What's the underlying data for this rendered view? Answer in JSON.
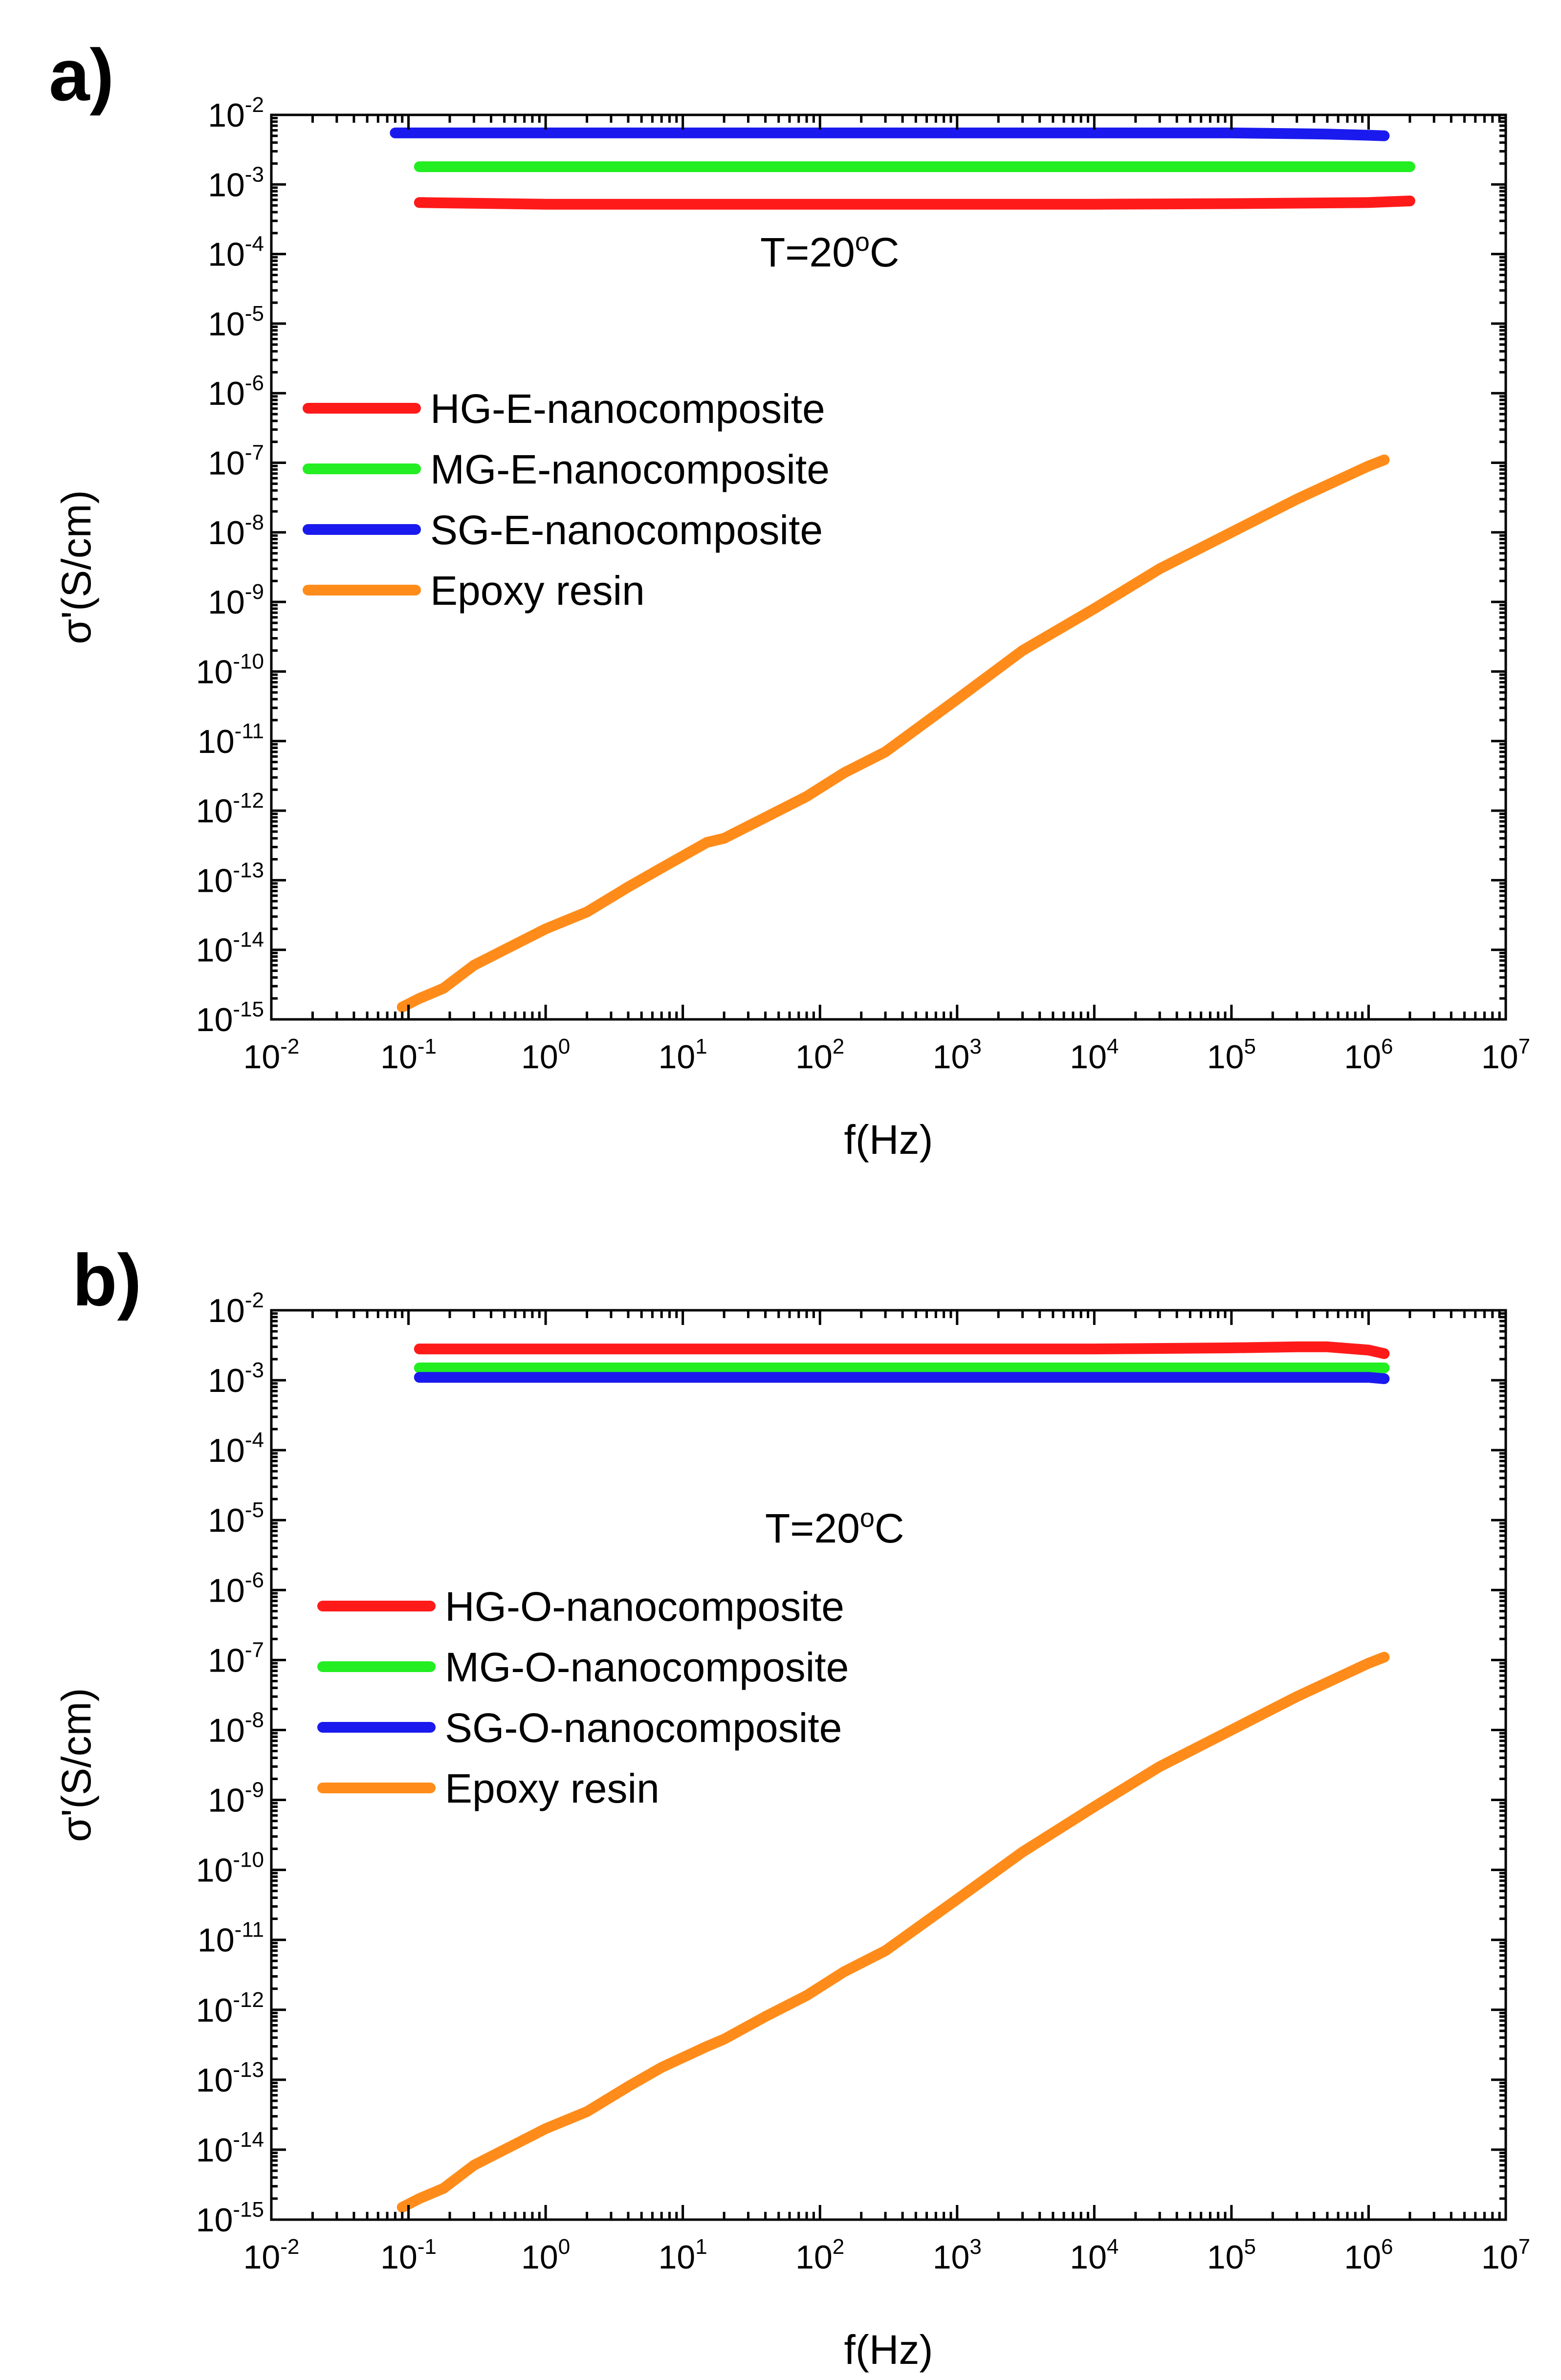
{
  "chart_data": [
    {
      "type": "line",
      "panel_label": "a)",
      "annotation": {
        "base": "T=20",
        "sup": "o",
        "rest": "C"
      },
      "xlabel": "f(Hz)",
      "ylabel": "σ'(S/cm)",
      "xscale": "log",
      "yscale": "log",
      "xlim": [
        0.01,
        10000000
      ],
      "ylim": [
        1e-15,
        0.01
      ],
      "x_ticks": [
        {
          "base": "10",
          "exp": "-2"
        },
        {
          "base": "10",
          "exp": "-1"
        },
        {
          "base": "10",
          "exp": "0"
        },
        {
          "base": "10",
          "exp": "1"
        },
        {
          "base": "10",
          "exp": "2"
        },
        {
          "base": "10",
          "exp": "3"
        },
        {
          "base": "10",
          "exp": "4"
        },
        {
          "base": "10",
          "exp": "5"
        },
        {
          "base": "10",
          "exp": "6"
        },
        {
          "base": "10",
          "exp": "7"
        }
      ],
      "y_ticks": [
        {
          "base": "10",
          "exp": "-2"
        },
        {
          "base": "10",
          "exp": "-3"
        },
        {
          "base": "10",
          "exp": "-4"
        },
        {
          "base": "10",
          "exp": "-5"
        },
        {
          "base": "10",
          "exp": "-6"
        },
        {
          "base": "10",
          "exp": "-7"
        },
        {
          "base": "10",
          "exp": "-8"
        },
        {
          "base": "10",
          "exp": "-9"
        },
        {
          "base": "10",
          "exp": "-10"
        },
        {
          "base": "10",
          "exp": "-11"
        },
        {
          "base": "10",
          "exp": "-12"
        },
        {
          "base": "10",
          "exp": "-13"
        },
        {
          "base": "10",
          "exp": "-14"
        },
        {
          "base": "10",
          "exp": "-15"
        }
      ],
      "legend_position": "center-left",
      "series": [
        {
          "name": "HG-E-nanocomposite",
          "color": "#ff1a1a",
          "x": [
            0.12,
            1,
            10,
            100,
            1000,
            10000,
            100000,
            1000000,
            2000000
          ],
          "y": [
            0.00055,
            0.00052,
            0.00052,
            0.00052,
            0.00052,
            0.00052,
            0.00053,
            0.00055,
            0.00058
          ]
        },
        {
          "name": "MG-E-nanocomposite",
          "color": "#22ee22",
          "x": [
            0.12,
            1,
            10,
            100,
            1000,
            10000,
            100000,
            1000000,
            2000000
          ],
          "y": [
            0.0018,
            0.0018,
            0.0018,
            0.0018,
            0.0018,
            0.0018,
            0.0018,
            0.0018,
            0.0018
          ]
        },
        {
          "name": "SG-E-nanocomposite",
          "color": "#1a1aee",
          "x": [
            0.08,
            1,
            10,
            100,
            1000,
            10000,
            100000,
            500000,
            1000000,
            1300000
          ],
          "y": [
            0.0055,
            0.0055,
            0.0055,
            0.0055,
            0.0055,
            0.0055,
            0.0055,
            0.0053,
            0.0051,
            0.005
          ]
        },
        {
          "name": "Epoxy resin",
          "color": "#ff8c1a",
          "x": [
            0.09,
            0.12,
            0.18,
            0.3,
            0.5,
            1,
            2,
            4,
            7,
            15,
            20,
            40,
            80,
            150,
            300,
            1000,
            3000,
            10000,
            30000,
            100000,
            300000,
            1000000,
            1300000
          ],
          "y": [
            1.5e-15,
            2e-15,
            2.8e-15,
            6e-15,
            1e-14,
            2e-14,
            3.5e-14,
            8e-14,
            1.5e-13,
            3.5e-13,
            4e-13,
            8e-13,
            1.6e-12,
            3.5e-12,
            7e-12,
            4e-11,
            2e-10,
            8e-10,
            3e-09,
            1e-08,
            3e-08,
            9e-08,
            1.1e-07
          ]
        }
      ]
    },
    {
      "type": "line",
      "panel_label": "b)",
      "annotation": {
        "base": "T=20",
        "sup": "o",
        "rest": "C"
      },
      "xlabel": "f(Hz)",
      "ylabel": "σ'(S/cm)",
      "xscale": "log",
      "yscale": "log",
      "xlim": [
        0.01,
        10000000
      ],
      "ylim": [
        1e-15,
        0.01
      ],
      "x_ticks": [
        {
          "base": "10",
          "exp": "-2"
        },
        {
          "base": "10",
          "exp": "-1"
        },
        {
          "base": "10",
          "exp": "0"
        },
        {
          "base": "10",
          "exp": "1"
        },
        {
          "base": "10",
          "exp": "2"
        },
        {
          "base": "10",
          "exp": "3"
        },
        {
          "base": "10",
          "exp": "4"
        },
        {
          "base": "10",
          "exp": "5"
        },
        {
          "base": "10",
          "exp": "6"
        },
        {
          "base": "10",
          "exp": "7"
        }
      ],
      "y_ticks": [
        {
          "base": "10",
          "exp": "-2"
        },
        {
          "base": "10",
          "exp": "-3"
        },
        {
          "base": "10",
          "exp": "-4"
        },
        {
          "base": "10",
          "exp": "-5"
        },
        {
          "base": "10",
          "exp": "-6"
        },
        {
          "base": "10",
          "exp": "-7"
        },
        {
          "base": "10",
          "exp": "-8"
        },
        {
          "base": "10",
          "exp": "-9"
        },
        {
          "base": "10",
          "exp": "-10"
        },
        {
          "base": "10",
          "exp": "-11"
        },
        {
          "base": "10",
          "exp": "-12"
        },
        {
          "base": "10",
          "exp": "-13"
        },
        {
          "base": "10",
          "exp": "-14"
        },
        {
          "base": "10",
          "exp": "-15"
        }
      ],
      "legend_position": "center-left",
      "series": [
        {
          "name": "HG-O-nanocomposite",
          "color": "#ff1a1a",
          "x": [
            0.12,
            1,
            10,
            100,
            1000,
            10000,
            100000,
            300000,
            500000,
            1000000,
            1300000
          ],
          "y": [
            0.0028,
            0.0028,
            0.0028,
            0.0028,
            0.0028,
            0.0028,
            0.0029,
            0.003,
            0.003,
            0.0027,
            0.0024
          ]
        },
        {
          "name": "MG-O-nanocomposite",
          "color": "#22ee22",
          "x": [
            0.12,
            1,
            10,
            100,
            1000,
            10000,
            100000,
            1000000,
            1300000
          ],
          "y": [
            0.0015,
            0.0015,
            0.0015,
            0.0015,
            0.0015,
            0.0015,
            0.0015,
            0.0015,
            0.0015
          ]
        },
        {
          "name": "SG-O-nanocomposite",
          "color": "#1a1aee",
          "x": [
            0.12,
            1,
            10,
            100,
            1000,
            10000,
            100000,
            1000000,
            1300000
          ],
          "y": [
            0.0011,
            0.0011,
            0.0011,
            0.0011,
            0.0011,
            0.0011,
            0.0011,
            0.0011,
            0.00105
          ]
        },
        {
          "name": "Epoxy resin",
          "color": "#ff8c1a",
          "x": [
            0.09,
            0.12,
            0.18,
            0.3,
            0.5,
            1,
            2,
            4,
            7,
            15,
            20,
            40,
            80,
            150,
            300,
            1000,
            3000,
            10000,
            30000,
            100000,
            300000,
            1000000,
            1300000
          ],
          "y": [
            1.5e-15,
            2e-15,
            2.8e-15,
            6e-15,
            1e-14,
            2e-14,
            3.5e-14,
            8e-14,
            1.5e-13,
            3e-13,
            3.8e-13,
            8e-13,
            1.6e-12,
            3.5e-12,
            7e-12,
            3.8e-11,
            1.8e-10,
            8e-10,
            3e-09,
            1e-08,
            3e-08,
            9e-08,
            1.1e-07
          ]
        }
      ]
    }
  ]
}
